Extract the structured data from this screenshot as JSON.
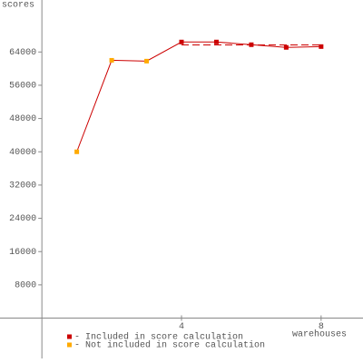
{
  "chart_data": {
    "type": "line",
    "y_label": "scores",
    "x_label": "warehouses",
    "x": [
      1,
      2,
      3,
      4,
      5,
      6,
      7,
      8
    ],
    "values": [
      40000,
      62000,
      61800,
      66400,
      66400,
      65750,
      65100,
      65300
    ],
    "included": [
      false,
      false,
      false,
      true,
      true,
      true,
      true,
      true
    ],
    "line_color": "#cc0000",
    "score": 65700,
    "legend": [
      {
        "name": "- Included in score calculation",
        "color": "#cc0000"
      },
      {
        "name": "- Not included in score calculation",
        "color": "#ffaa00"
      }
    ],
    "xlim": [
      -1.2,
      9.2
    ],
    "ylim": [
      -9700,
      76500
    ],
    "xticks": [
      4,
      8
    ],
    "yticks": [
      8000,
      16000,
      24000,
      32000,
      40000,
      48000,
      56000,
      64000
    ]
  }
}
